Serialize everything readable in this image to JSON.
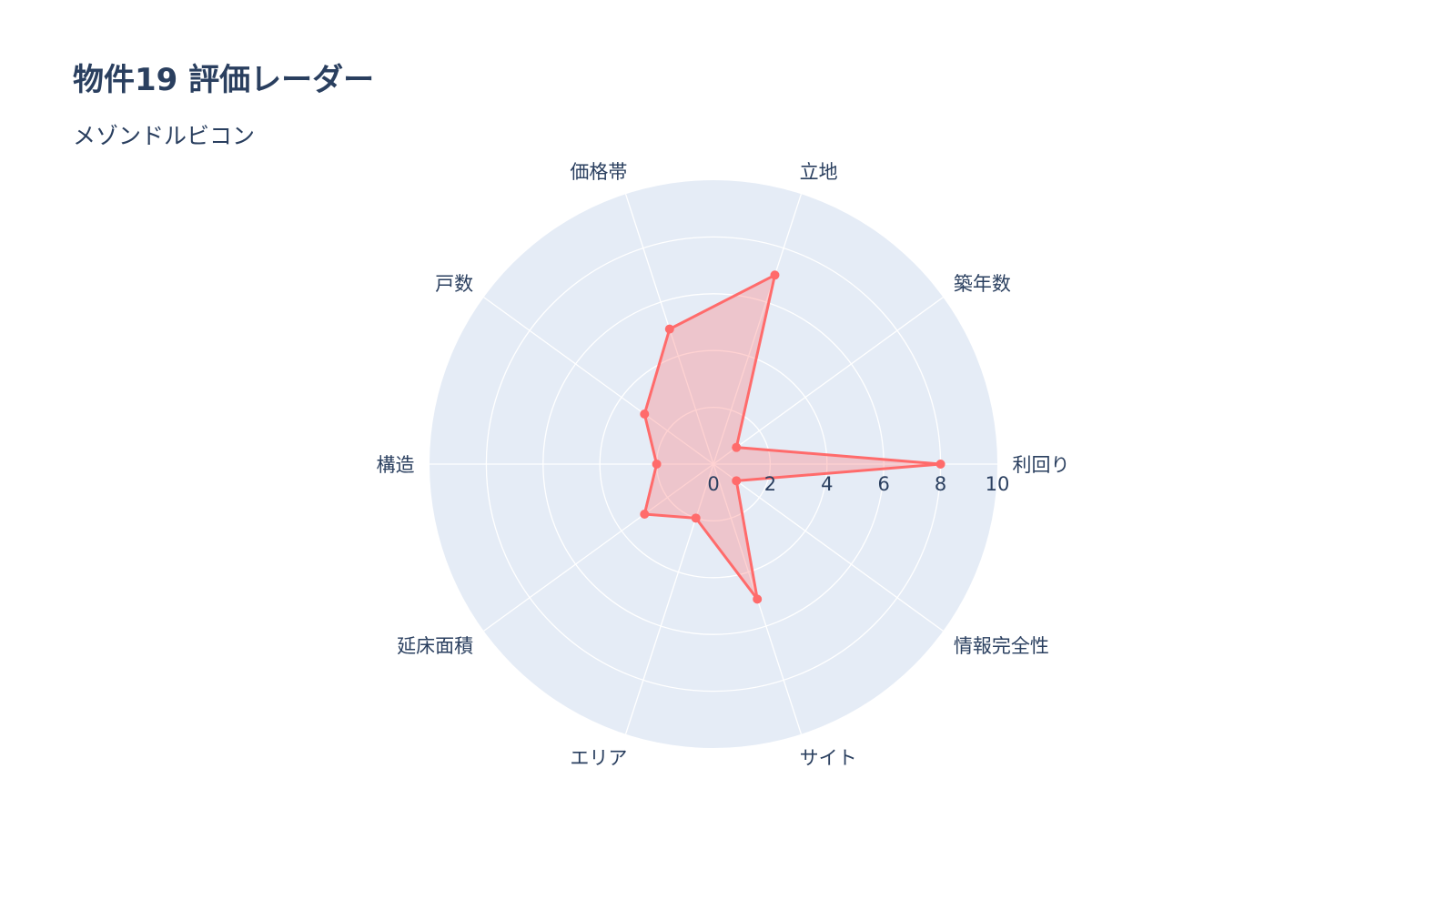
{
  "chart_data": {
    "type": "radar",
    "title": "物件19 評価レーダー",
    "subtitle": "メゾンドルビコン",
    "categories": [
      "利回り",
      "築年数",
      "立地",
      "価格帯",
      "戸数",
      "構造",
      "延床面積",
      "エリア",
      "サイト",
      "情報完全性"
    ],
    "series": [
      {
        "values": [
          8,
          1,
          7,
          5,
          3,
          2,
          3,
          2,
          5,
          1
        ]
      }
    ],
    "radial_range": [
      0,
      10
    ],
    "radial_ticks": [
      "0",
      "2",
      "4",
      "6",
      "8",
      "10"
    ],
    "grid": true,
    "colors": {
      "line": "#ff6b6b",
      "fill": "rgba(255,107,107,0.3)",
      "polar_bg": "#e5ecf6",
      "grid": "#ffffff"
    }
  }
}
